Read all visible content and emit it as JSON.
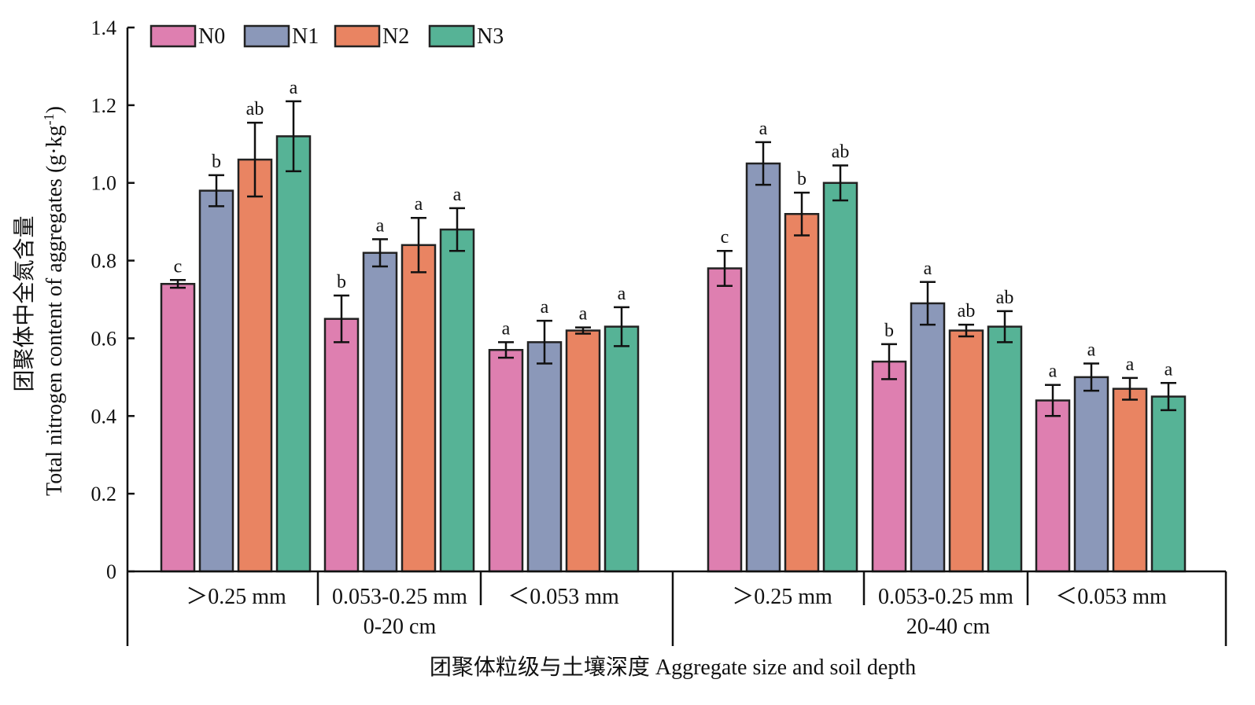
{
  "chart_data": {
    "type": "bar",
    "title": "",
    "ylabel": "团聚体中全氮含量 Total nitrogen content of aggregates (g·kg⁻¹)",
    "ylabel_zh": "团聚体中全氮含量",
    "ylabel_en_main": "Total nitrogen content of aggregates (g·kg",
    "ylabel_en_sup": "-1",
    "ylabel_en_end": ")",
    "xlabel": "团聚体粒级与土壤深度 Aggregate size and soil depth",
    "ylim": [
      0,
      1.4
    ],
    "yticks": [
      {
        "value": 0,
        "label": "0"
      },
      {
        "value": 0.2,
        "label": "0.2"
      },
      {
        "value": 0.4,
        "label": "0.4"
      },
      {
        "value": 0.6,
        "label": "0.6"
      },
      {
        "value": 0.8,
        "label": "0.8"
      },
      {
        "value": 1.0,
        "label": "1.0"
      },
      {
        "value": 1.2,
        "label": "1.2"
      },
      {
        "value": 1.4,
        "label": "1.4"
      }
    ],
    "legend_position": "top-left",
    "depths": [
      "0-20 cm",
      "20-40 cm"
    ],
    "categories": [
      ">0.25 mm",
      "0.053-0.25 mm",
      "<0.053 mm",
      ">0.25 mm",
      "0.053-0.25 mm",
      "<0.053 mm"
    ],
    "category_labels": [
      "＞0.25 mm",
      "0.053-0.25 mm",
      "＜0.053 mm",
      "＞0.25 mm",
      "0.053-0.25 mm",
      "＜0.053 mm"
    ],
    "series": [
      {
        "name": "N0",
        "color": "#de7fb0",
        "values": [
          0.74,
          0.65,
          0.57,
          0.78,
          0.54,
          0.44
        ],
        "errors": [
          0.01,
          0.06,
          0.02,
          0.045,
          0.045,
          0.04
        ],
        "sig": [
          "c",
          "b",
          "a",
          "c",
          "b",
          "a"
        ]
      },
      {
        "name": "N1",
        "color": "#8b98b9",
        "values": [
          0.98,
          0.82,
          0.59,
          1.05,
          0.69,
          0.5
        ],
        "errors": [
          0.04,
          0.035,
          0.055,
          0.055,
          0.055,
          0.035
        ],
        "sig": [
          "b",
          "a",
          "a",
          "a",
          "a",
          "a"
        ]
      },
      {
        "name": "N2",
        "color": "#e98462",
        "values": [
          1.06,
          0.84,
          0.62,
          0.92,
          0.62,
          0.47
        ],
        "errors": [
          0.095,
          0.07,
          0.008,
          0.055,
          0.015,
          0.028
        ],
        "sig": [
          "ab",
          "a",
          "a",
          "b",
          "ab",
          "a"
        ]
      },
      {
        "name": "N3",
        "color": "#56b396",
        "values": [
          1.12,
          0.88,
          0.63,
          1.0,
          0.63,
          0.45
        ],
        "errors": [
          0.09,
          0.055,
          0.05,
          0.045,
          0.04,
          0.035
        ],
        "sig": [
          "a",
          "a",
          "a",
          "ab",
          "ab",
          "a"
        ]
      }
    ]
  }
}
